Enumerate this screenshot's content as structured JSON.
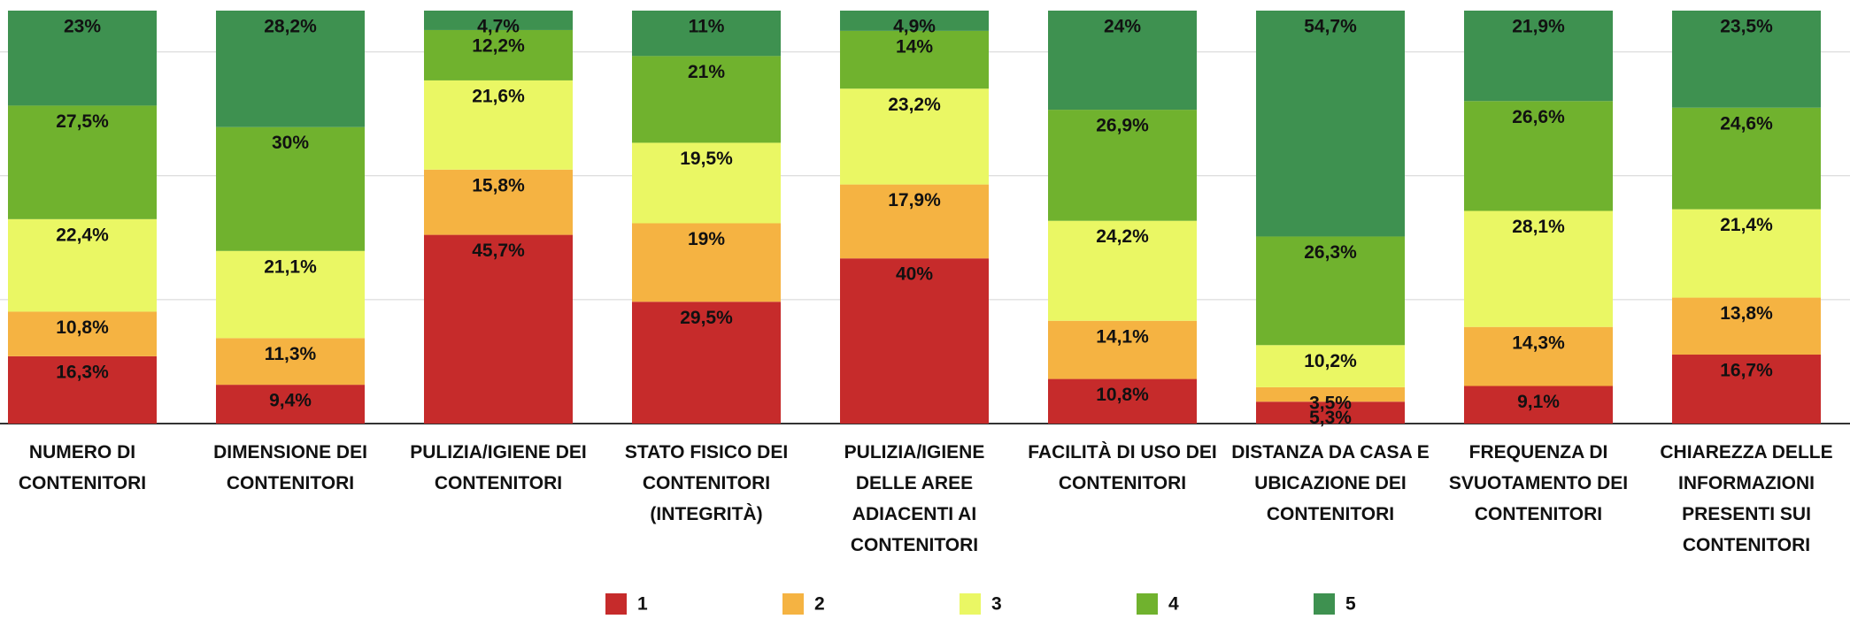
{
  "chart_data": {
    "type": "stacked_bar",
    "categories": [
      "NUMERO DI CONTENITORI",
      "DIMENSIONE DEI CONTENITORI",
      "PULIZIA/IGIENE DEI CONTENITORI",
      "STATO FISICO DEI CONTENITORI (INTEGRITÀ)",
      "PULIZIA/IGIENE DELLE AREE ADIACENTI AI CONTENITORI",
      "FACILITÀ DI USO DEI CONTENITORI",
      "DISTANZA DA CASA E UBICAZIONE DEI CONTENITORI",
      "FREQUENZA DI SVUOTAMENTO DEI CONTENITORI",
      "CHIAREZZA DELLE INFORMAZIONI PRESENTI SUI CONTENITORI"
    ],
    "series": [
      {
        "name": "1",
        "color": "#c62b2b",
        "values": [
          16.3,
          9.4,
          45.7,
          29.5,
          40,
          10.8,
          5.3,
          9.1,
          16.7
        ],
        "value_labels": [
          "16,3%",
          "9,4%",
          "45,7%",
          "29,5%",
          "40%",
          "10,8%",
          "5,3%",
          "9,1%",
          "16,7%"
        ]
      },
      {
        "name": "2",
        "color": "#f5b342",
        "values": [
          10.8,
          11.3,
          15.8,
          19,
          17.9,
          14.1,
          3.5,
          14.3,
          13.8
        ],
        "value_labels": [
          "10,8%",
          "11,3%",
          "15,8%",
          "19%",
          "17,9%",
          "14,1%",
          "3,5%",
          "14,3%",
          "13,8%"
        ]
      },
      {
        "name": "3",
        "color": "#eaf764",
        "values": [
          22.4,
          21.1,
          21.6,
          19.5,
          23.2,
          24.2,
          10.2,
          28.1,
          21.4
        ],
        "value_labels": [
          "22,4%",
          "21,1%",
          "21,6%",
          "19,5%",
          "23,2%",
          "24,2%",
          "10,2%",
          "28,1%",
          "21,4%"
        ]
      },
      {
        "name": "4",
        "color": "#70b22e",
        "values": [
          27.5,
          30,
          12.2,
          21,
          14,
          26.9,
          26.3,
          26.6,
          24.6
        ],
        "value_labels": [
          "27,5%",
          "30%",
          "12,2%",
          "21%",
          "14%",
          "26,9%",
          "26,3%",
          "26,6%",
          "24,6%"
        ]
      },
      {
        "name": "5",
        "color": "#3e9150",
        "values": [
          23,
          28.2,
          4.7,
          11,
          4.9,
          24,
          54.7,
          21.9,
          23.5
        ],
        "value_labels": [
          "23%",
          "28,2%",
          "4,7%",
          "11%",
          "4,9%",
          "24%",
          "54,7%",
          "21,9%",
          "23,5%"
        ]
      }
    ],
    "ylim": [
      0,
      100
    ],
    "yticks": [
      0,
      30,
      60,
      90
    ],
    "grid": true,
    "legend": "bottom"
  }
}
